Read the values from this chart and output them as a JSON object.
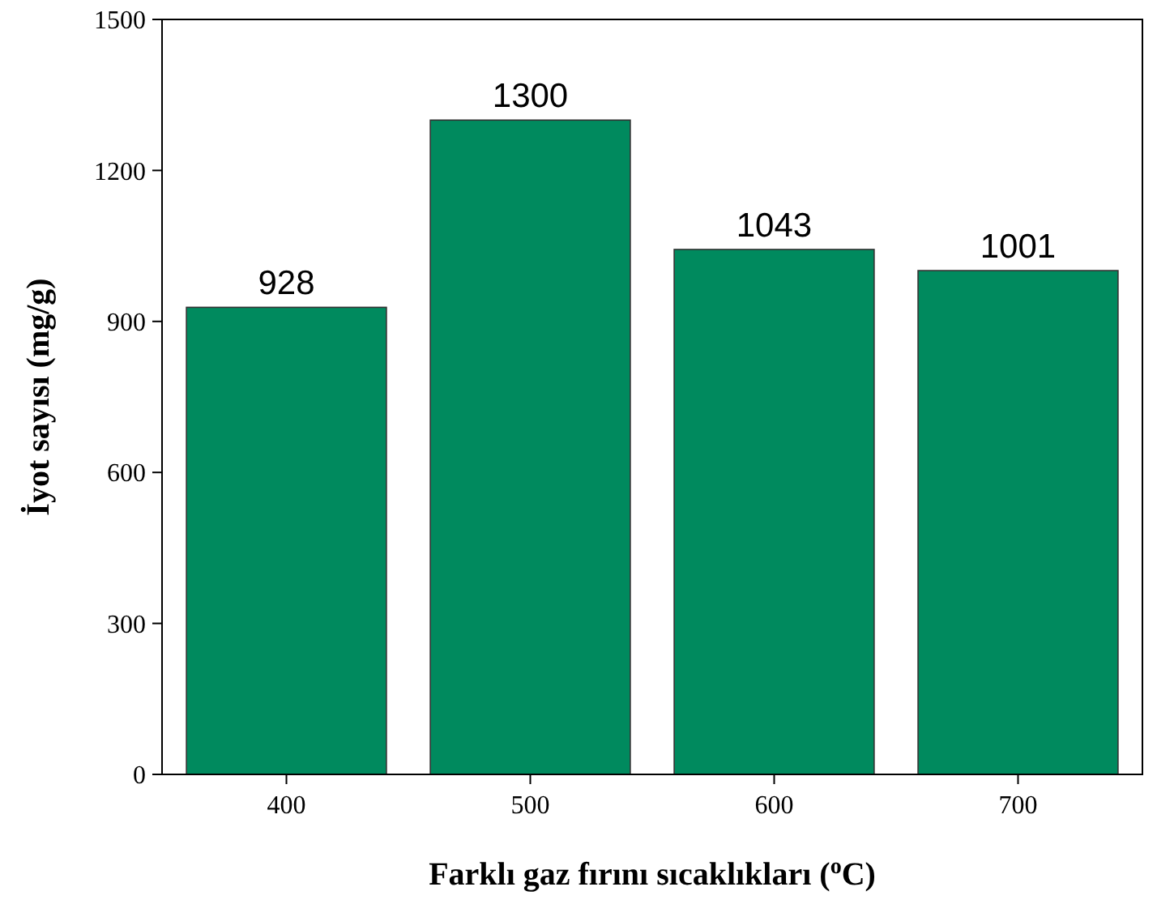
{
  "chart_data": {
    "type": "bar",
    "xlabel": "Farklı gaz fırını sıcaklıkları ($^{o}$C)",
    "ylabel": "İyot sayısı (mg/g)",
    "categories": [
      "400",
      "500",
      "600",
      "700"
    ],
    "values": [
      928,
      1300,
      1043,
      1001
    ],
    "color": "#008a5e",
    "ylim": [
      0,
      1500
    ],
    "yticks": [
      0,
      300,
      600,
      900,
      1200,
      1500
    ],
    "data_labels": true
  }
}
